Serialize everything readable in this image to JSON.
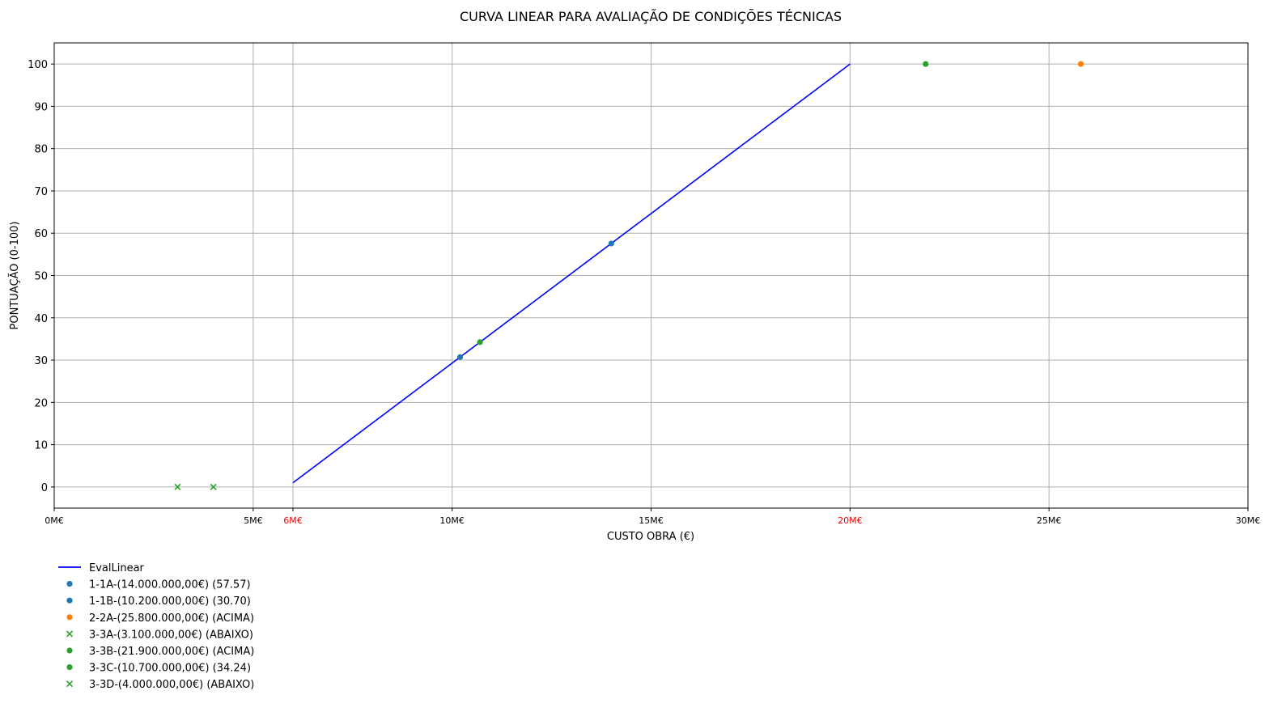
{
  "chart_data": {
    "type": "scatter",
    "title": "CURVA LINEAR PARA AVALIAÇÃO DE CONDIÇÕES TÉCNICAS",
    "xlabel": "CUSTO OBRA (€)",
    "ylabel": "PONTUAÇÃO (0-100)",
    "xlim": [
      0,
      30000000
    ],
    "ylim": [
      -5,
      105
    ],
    "grid": true,
    "legend_position": "below-left",
    "x_ticks": [
      {
        "value": 0,
        "label": "0M€",
        "color": "#000000"
      },
      {
        "value": 5000000,
        "label": "5M€",
        "color": "#000000"
      },
      {
        "value": 6000000,
        "label": "6M€",
        "color": "#ff0000"
      },
      {
        "value": 10000000,
        "label": "10M€",
        "color": "#000000"
      },
      {
        "value": 15000000,
        "label": "15M€",
        "color": "#000000"
      },
      {
        "value": 20000000,
        "label": "20M€",
        "color": "#ff0000"
      },
      {
        "value": 25000000,
        "label": "25M€",
        "color": "#000000"
      },
      {
        "value": 30000000,
        "label": "30M€",
        "color": "#000000"
      }
    ],
    "y_ticks": [
      {
        "value": 0,
        "label": "0"
      },
      {
        "value": 10,
        "label": "10"
      },
      {
        "value": 20,
        "label": "20"
      },
      {
        "value": 30,
        "label": "30"
      },
      {
        "value": 40,
        "label": "40"
      },
      {
        "value": 50,
        "label": "50"
      },
      {
        "value": 60,
        "label": "60"
      },
      {
        "value": 70,
        "label": "70"
      },
      {
        "value": 80,
        "label": "80"
      },
      {
        "value": 90,
        "label": "90"
      },
      {
        "value": 100,
        "label": "100"
      }
    ],
    "line": {
      "name": "EvalLinear",
      "color": "#0000ff",
      "points": [
        [
          6000000,
          1
        ],
        [
          20000000,
          100
        ]
      ]
    },
    "series": [
      {
        "name": "1-1A-(14.000.000,00€) (57.57)",
        "x": 14000000,
        "y": 57.57,
        "marker": "circle",
        "color": "#1f77b4"
      },
      {
        "name": "1-1B-(10.200.000,00€) (30.70)",
        "x": 10200000,
        "y": 30.7,
        "marker": "circle",
        "color": "#1f77b4"
      },
      {
        "name": "2-2A-(25.800.000,00€) (ACIMA)",
        "x": 25800000,
        "y": 100,
        "marker": "circle",
        "color": "#ff7f0e"
      },
      {
        "name": "3-3A-(3.100.000,00€) (ABAIXO)",
        "x": 3100000,
        "y": 0,
        "marker": "x",
        "color": "#2ca02c"
      },
      {
        "name": "3-3B-(21.900.000,00€) (ACIMA)",
        "x": 21900000,
        "y": 100,
        "marker": "circle",
        "color": "#2ca02c"
      },
      {
        "name": "3-3C-(10.700.000,00€) (34.24)",
        "x": 10700000,
        "y": 34.24,
        "marker": "circle",
        "color": "#2ca02c"
      },
      {
        "name": "3-3D-(4.000.000,00€) (ABAIXO)",
        "x": 4000000,
        "y": 0,
        "marker": "x",
        "color": "#2ca02c"
      }
    ]
  }
}
